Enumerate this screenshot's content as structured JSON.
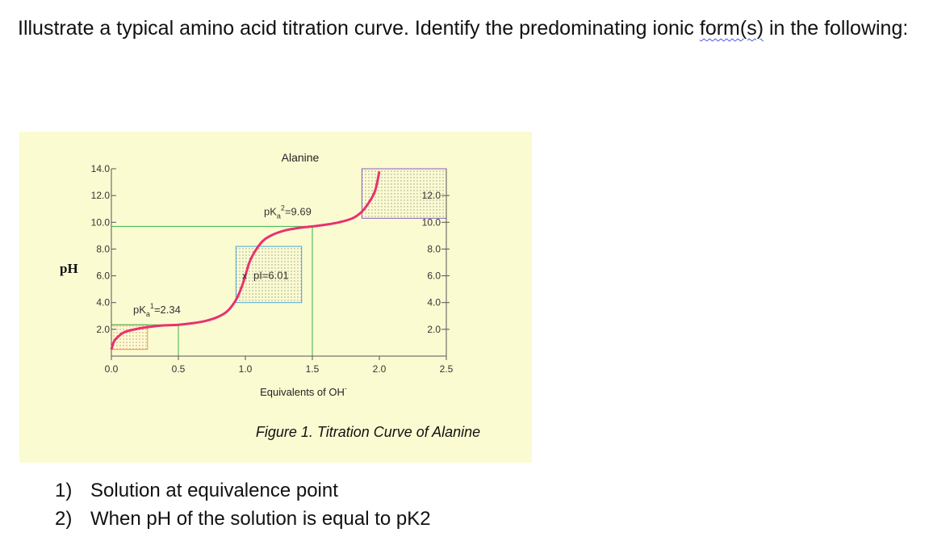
{
  "question": {
    "text_before": "Illustrate a typical amino acid titration curve. Identify the predominating ionic ",
    "text_squiggle": "form(s)",
    "text_after": " in the following:"
  },
  "answers": [
    {
      "number": "1)",
      "text": "Solution at equivalence point"
    },
    {
      "number": "2)",
      "text": "When pH of the solution is equal to pK2"
    }
  ],
  "figure": {
    "caption": "Figure 1. Titration Curve of Alanine"
  },
  "chart_data": {
    "type": "line",
    "title": "Alanine",
    "xlabel_main": "Equivalents of OH",
    "xlabel_sup": "-",
    "ylabel": "pH",
    "xlim": [
      0,
      2.5
    ],
    "ylim": [
      0,
      14
    ],
    "x_ticks": [
      "0.0",
      "0.5",
      "1.0",
      "1.5",
      "2.0",
      "2.5"
    ],
    "x_tick_values": [
      0,
      0.5,
      1.0,
      1.5,
      2.0,
      2.5
    ],
    "y_ticks_left": [
      "14.0",
      "12.0",
      "10.0",
      "8.0",
      "6.0",
      "4.0",
      "2.0"
    ],
    "y_ticks_right": [
      "12.0",
      "10.0",
      "8.0",
      "6.0",
      "4.0",
      "2.0"
    ],
    "y_tick_values_left": [
      14,
      12,
      10,
      8,
      6,
      4,
      2
    ],
    "y_tick_values_right": [
      12,
      10,
      8,
      6,
      4,
      2
    ],
    "annotations": {
      "pka1": {
        "prefix": "pK",
        "sub": "a",
        "sup": "1",
        "value": "=2.34",
        "x": 0.5,
        "y": 2.34
      },
      "pka2": {
        "prefix": "pK",
        "sub": "a",
        "sup": "2",
        "value": "=9.69",
        "x": 1.5,
        "y": 9.69
      },
      "pi": {
        "marker": "x",
        "label": "pI=6.01",
        "x": 1.0,
        "y": 6.01
      }
    },
    "curve_points": [
      [
        0.0,
        0.5
      ],
      [
        0.02,
        1.1
      ],
      [
        0.05,
        1.45
      ],
      [
        0.1,
        1.8
      ],
      [
        0.2,
        2.05
      ],
      [
        0.3,
        2.2
      ],
      [
        0.4,
        2.3
      ],
      [
        0.5,
        2.34
      ],
      [
        0.6,
        2.45
      ],
      [
        0.7,
        2.62
      ],
      [
        0.8,
        2.95
      ],
      [
        0.87,
        3.4
      ],
      [
        0.93,
        4.2
      ],
      [
        0.97,
        5.1
      ],
      [
        1.0,
        6.01
      ],
      [
        1.03,
        7.0
      ],
      [
        1.07,
        7.8
      ],
      [
        1.13,
        8.6
      ],
      [
        1.2,
        9.05
      ],
      [
        1.3,
        9.4
      ],
      [
        1.4,
        9.58
      ],
      [
        1.5,
        9.69
      ],
      [
        1.6,
        9.82
      ],
      [
        1.7,
        10.0
      ],
      [
        1.8,
        10.3
      ],
      [
        1.87,
        10.8
      ],
      [
        1.93,
        11.6
      ],
      [
        1.97,
        12.4
      ],
      [
        2.0,
        13.8
      ]
    ],
    "colors": {
      "curve": "#e8326e",
      "guide_lines": "#36b24a",
      "box_start": "#e8983a",
      "box_pi": "#4aa6d8",
      "box_end": "#8a5cc4",
      "panel_bg": "#fbfbd2"
    }
  }
}
